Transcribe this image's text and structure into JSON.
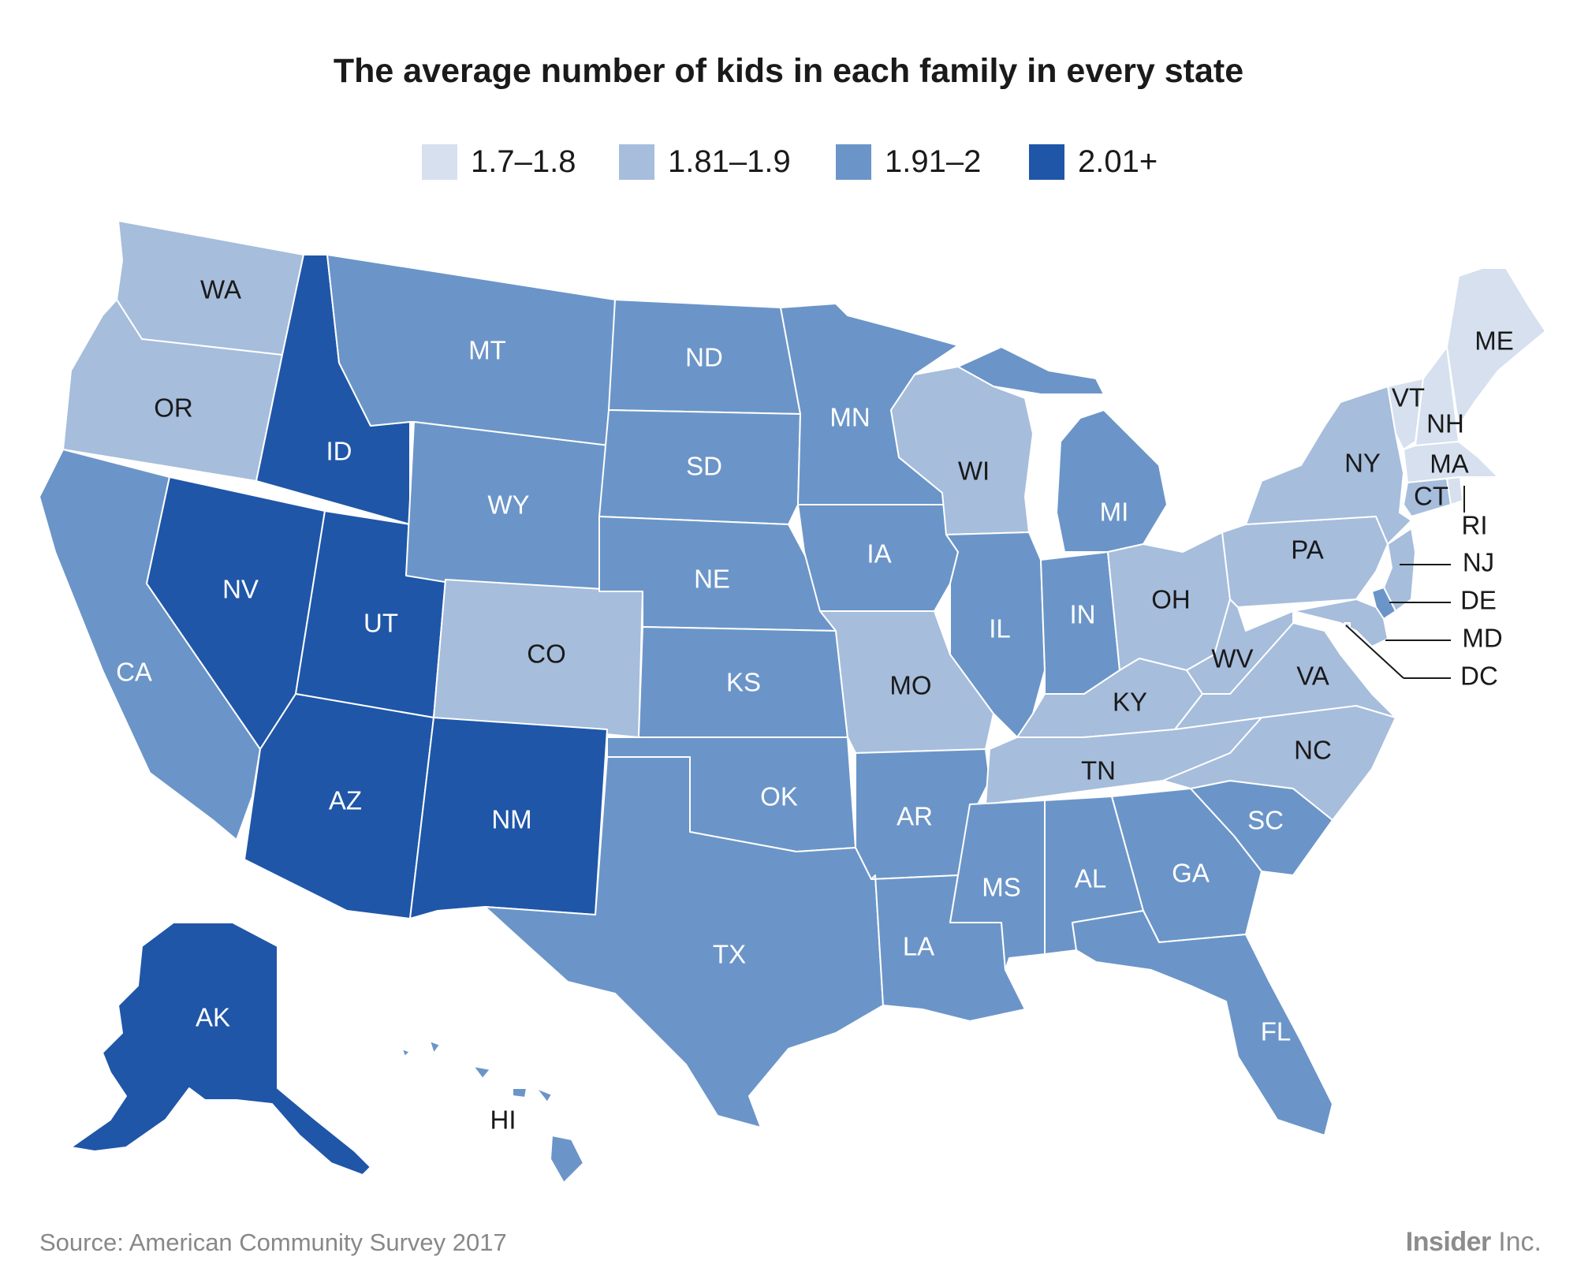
{
  "title": "The average number of kids in each family in every state",
  "legend": [
    {
      "label": "1.7–1.8",
      "color": "#d6e0ee"
    },
    {
      "label": "1.81–1.9",
      "color": "#a6bddc"
    },
    {
      "label": "1.91–2",
      "color": "#6b95c8"
    },
    {
      "label": "2.01+",
      "color": "#1f56a8"
    }
  ],
  "label_color_dark": "#1a1a1a",
  "label_color_light": "#ffffff",
  "states": [
    {
      "code": "WA",
      "bin": 1
    },
    {
      "code": "OR",
      "bin": 1
    },
    {
      "code": "CA",
      "bin": 2
    },
    {
      "code": "ID",
      "bin": 3
    },
    {
      "code": "NV",
      "bin": 3
    },
    {
      "code": "UT",
      "bin": 3
    },
    {
      "code": "AZ",
      "bin": 3
    },
    {
      "code": "MT",
      "bin": 2
    },
    {
      "code": "WY",
      "bin": 2
    },
    {
      "code": "CO",
      "bin": 1
    },
    {
      "code": "NM",
      "bin": 3
    },
    {
      "code": "ND",
      "bin": 2
    },
    {
      "code": "SD",
      "bin": 2
    },
    {
      "code": "NE",
      "bin": 2
    },
    {
      "code": "KS",
      "bin": 2
    },
    {
      "code": "OK",
      "bin": 2
    },
    {
      "code": "TX",
      "bin": 2
    },
    {
      "code": "MN",
      "bin": 2
    },
    {
      "code": "IA",
      "bin": 2
    },
    {
      "code": "MO",
      "bin": 1
    },
    {
      "code": "AR",
      "bin": 2
    },
    {
      "code": "LA",
      "bin": 2
    },
    {
      "code": "WI",
      "bin": 1
    },
    {
      "code": "IL",
      "bin": 2
    },
    {
      "code": "MI",
      "bin": 2
    },
    {
      "code": "IN",
      "bin": 2
    },
    {
      "code": "OH",
      "bin": 1
    },
    {
      "code": "KY",
      "bin": 1
    },
    {
      "code": "TN",
      "bin": 1
    },
    {
      "code": "MS",
      "bin": 2
    },
    {
      "code": "AL",
      "bin": 2
    },
    {
      "code": "GA",
      "bin": 2
    },
    {
      "code": "FL",
      "bin": 2
    },
    {
      "code": "SC",
      "bin": 2
    },
    {
      "code": "NC",
      "bin": 1
    },
    {
      "code": "VA",
      "bin": 1
    },
    {
      "code": "WV",
      "bin": 1
    },
    {
      "code": "PA",
      "bin": 1
    },
    {
      "code": "NY",
      "bin": 1
    },
    {
      "code": "VT",
      "bin": 0
    },
    {
      "code": "NH",
      "bin": 0
    },
    {
      "code": "ME",
      "bin": 0
    },
    {
      "code": "MA",
      "bin": 0
    },
    {
      "code": "CT",
      "bin": 1
    },
    {
      "code": "RI",
      "bin": 0
    },
    {
      "code": "NJ",
      "bin": 1
    },
    {
      "code": "DE",
      "bin": 2
    },
    {
      "code": "MD",
      "bin": 1
    },
    {
      "code": "DC",
      "bin": 0
    },
    {
      "code": "AK",
      "bin": 3
    },
    {
      "code": "HI",
      "bin": 2
    }
  ],
  "source": "Source: American Community Survey 2017",
  "brand": {
    "bold": "Insider",
    "light": "Inc."
  }
}
